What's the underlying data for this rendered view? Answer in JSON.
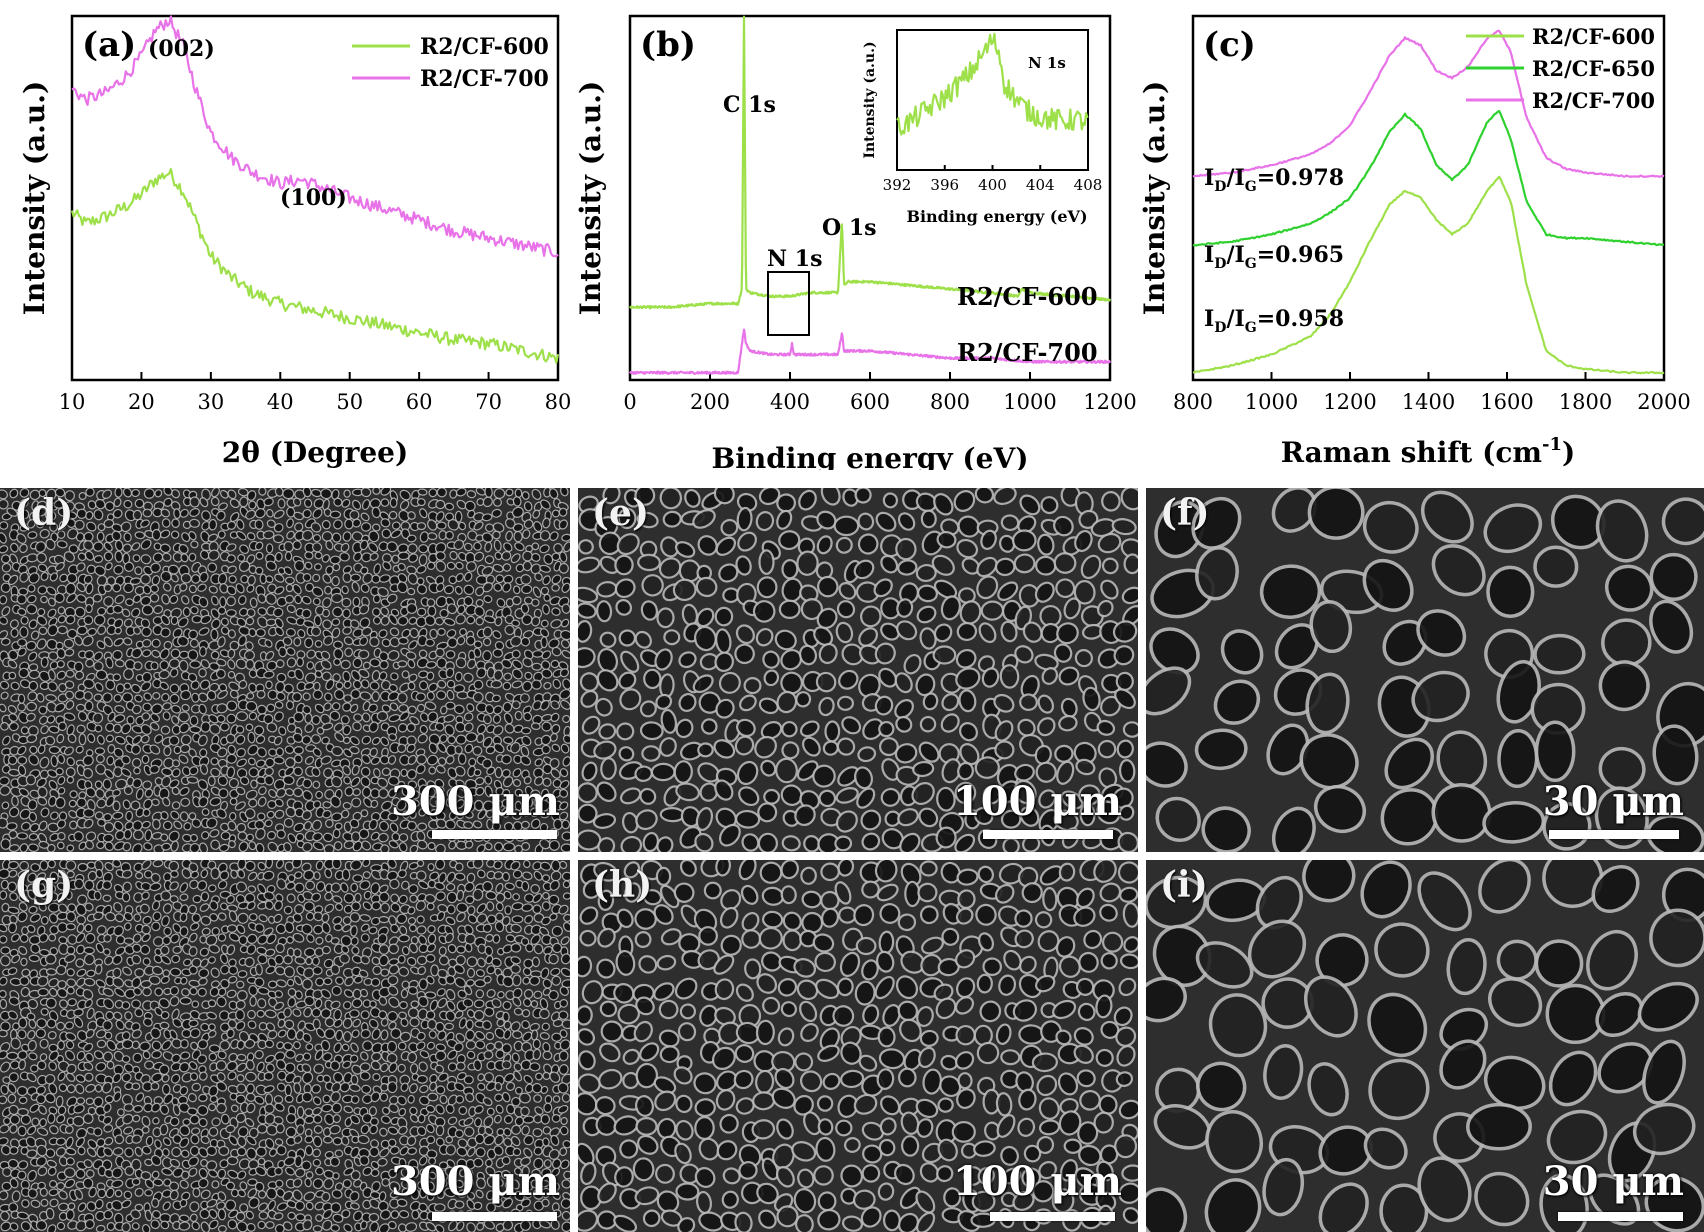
{
  "charts": {
    "a": {
      "label": "(a)",
      "xlabel": "2θ (Degree)",
      "ylabel": "Intensity (a.u.)",
      "xticks": [
        "10",
        "20",
        "30",
        "40",
        "50",
        "60",
        "70",
        "80"
      ],
      "annotations": [
        "(002)",
        "(100)"
      ],
      "legend": [
        "R2/CF-600",
        "R2/CF-700"
      ]
    },
    "b": {
      "label": "(b)",
      "xlabel": "Binding energy (eV)",
      "ylabel": "Intensity (a.u.)",
      "xticks": [
        "0",
        "200",
        "400",
        "600",
        "800",
        "1000",
        "1200"
      ],
      "annotations": [
        "C 1s",
        "N 1s",
        "O 1s"
      ],
      "series_labels": [
        "R2/CF-600",
        "R2/CF-700"
      ],
      "inset": {
        "title": "N 1s",
        "xlabel": "Binding energy (eV)",
        "ylabel": "Intensity (a.u.)",
        "xticks": [
          "392",
          "396",
          "400",
          "404",
          "408"
        ]
      }
    },
    "c": {
      "label": "(c)",
      "xlabel": "Raman shift (cm",
      "xlabel_sup": "-1",
      "xlabel_end": ")",
      "ylabel": "Intensity (a.u.)",
      "xticks": [
        "800",
        "1000",
        "1200",
        "1400",
        "1600",
        "1800",
        "2000"
      ],
      "legend": [
        "R2/CF-600",
        "R2/CF-650",
        "R2/CF-700"
      ],
      "ratios": [
        "0.978",
        "0.965",
        "0.958"
      ]
    }
  },
  "chart_data": [
    {
      "type": "line",
      "panel": "a",
      "xlim": [
        10,
        80
      ],
      "series": [
        {
          "name": "R2/CF-600",
          "color": "#9ee04a",
          "x": [
            10,
            12,
            15,
            18,
            20,
            22,
            24,
            26,
            28,
            30,
            33,
            36,
            40,
            45,
            50,
            55,
            60,
            65,
            70,
            75,
            80
          ],
          "y": [
            0.46,
            0.43,
            0.45,
            0.48,
            0.51,
            0.55,
            0.57,
            0.52,
            0.43,
            0.34,
            0.28,
            0.24,
            0.21,
            0.19,
            0.17,
            0.15,
            0.13,
            0.11,
            0.1,
            0.08,
            0.06
          ]
        },
        {
          "name": "R2/CF-700",
          "color": "#e873e8",
          "x": [
            10,
            12,
            15,
            18,
            20,
            22,
            24,
            26,
            28,
            30,
            33,
            36,
            40,
            43,
            46,
            50,
            55,
            60,
            65,
            70,
            75,
            80
          ],
          "y": [
            0.8,
            0.77,
            0.79,
            0.84,
            0.89,
            0.96,
            0.99,
            0.92,
            0.79,
            0.68,
            0.61,
            0.57,
            0.54,
            0.55,
            0.53,
            0.5,
            0.47,
            0.44,
            0.41,
            0.39,
            0.37,
            0.35
          ]
        }
      ]
    },
    {
      "type": "line",
      "panel": "b",
      "xlim": [
        0,
        1200
      ],
      "series": [
        {
          "name": "R2/CF-600",
          "color": "#9ee04a",
          "x": [
            0,
            100,
            200,
            270,
            280,
            285,
            290,
            300,
            350,
            400,
            450,
            500,
            520,
            530,
            535,
            545,
            600,
            700,
            800,
            900,
            970,
            980,
            1000,
            1100,
            1200
          ],
          "y": [
            0.2,
            0.2,
            0.21,
            0.21,
            0.25,
            1.0,
            0.25,
            0.24,
            0.23,
            0.23,
            0.24,
            0.24,
            0.24,
            0.44,
            0.26,
            0.27,
            0.27,
            0.26,
            0.25,
            0.24,
            0.23,
            0.25,
            0.24,
            0.23,
            0.22
          ]
        },
        {
          "name": "R2/CF-700",
          "color": "#e873e8",
          "x": [
            0,
            100,
            200,
            270,
            280,
            285,
            290,
            300,
            350,
            400,
            405,
            410,
            450,
            500,
            520,
            530,
            535,
            545,
            600,
            700,
            800,
            900,
            1000,
            1100,
            1200
          ],
          "y": [
            0.02,
            0.02,
            0.02,
            0.02,
            0.1,
            0.14,
            0.1,
            0.08,
            0.07,
            0.07,
            0.1,
            0.07,
            0.07,
            0.07,
            0.07,
            0.13,
            0.08,
            0.08,
            0.08,
            0.07,
            0.06,
            0.06,
            0.05,
            0.05,
            0.05
          ]
        }
      ],
      "inset": {
        "xlim": [
          392,
          408
        ],
        "x": [
          392,
          393,
          394,
          395,
          396,
          397,
          398,
          399,
          400,
          400.5,
          401,
          402,
          403,
          404,
          405,
          406,
          407,
          408
        ],
        "y": [
          0.3,
          0.34,
          0.4,
          0.46,
          0.52,
          0.6,
          0.68,
          0.8,
          0.93,
          0.86,
          0.62,
          0.5,
          0.42,
          0.38,
          0.36,
          0.35,
          0.36,
          0.34
        ]
      }
    },
    {
      "type": "line",
      "panel": "c",
      "xlim": [
        800,
        2000
      ],
      "series": [
        {
          "name": "R2/CF-600",
          "color": "#9ee04a",
          "x": [
            800,
            900,
            1000,
            1100,
            1150,
            1200,
            1250,
            1300,
            1340,
            1380,
            1420,
            1460,
            1500,
            1550,
            1580,
            1610,
            1650,
            1700,
            1750,
            1800,
            1900,
            2000
          ],
          "y": [
            0.02,
            0.04,
            0.07,
            0.12,
            0.18,
            0.27,
            0.38,
            0.48,
            0.52,
            0.5,
            0.44,
            0.4,
            0.43,
            0.52,
            0.56,
            0.49,
            0.26,
            0.08,
            0.04,
            0.03,
            0.02,
            0.02
          ]
        },
        {
          "name": "R2/CF-650",
          "color": "#2ed12e",
          "x": [
            800,
            900,
            1000,
            1100,
            1150,
            1200,
            1250,
            1300,
            1340,
            1380,
            1420,
            1460,
            1500,
            1550,
            1580,
            1610,
            1650,
            1700,
            1750,
            1800,
            1900,
            2000
          ],
          "y": [
            0.37,
            0.38,
            0.4,
            0.43,
            0.46,
            0.5,
            0.58,
            0.68,
            0.73,
            0.69,
            0.59,
            0.55,
            0.59,
            0.71,
            0.74,
            0.66,
            0.49,
            0.4,
            0.39,
            0.39,
            0.38,
            0.37
          ]
        },
        {
          "name": "R2/CF-700",
          "color": "#e873e8",
          "x": [
            800,
            900,
            1000,
            1100,
            1150,
            1200,
            1250,
            1300,
            1340,
            1380,
            1420,
            1460,
            1500,
            1550,
            1580,
            1610,
            1650,
            1700,
            1750,
            1800,
            1900,
            2000
          ],
          "y": [
            0.56,
            0.57,
            0.59,
            0.62,
            0.65,
            0.7,
            0.79,
            0.89,
            0.94,
            0.92,
            0.85,
            0.83,
            0.86,
            0.94,
            0.96,
            0.9,
            0.72,
            0.61,
            0.58,
            0.57,
            0.56,
            0.56
          ]
        }
      ]
    }
  ],
  "micrographs": [
    {
      "label": "(d)",
      "scale": "300 μm"
    },
    {
      "label": "(e)",
      "scale": "100 μm"
    },
    {
      "label": "(f)",
      "scale": "30 μm"
    },
    {
      "label": "(g)",
      "scale": "300 μm"
    },
    {
      "label": "(h)",
      "scale": "100 μm"
    },
    {
      "label": "(i)",
      "scale": "30 μm"
    }
  ]
}
